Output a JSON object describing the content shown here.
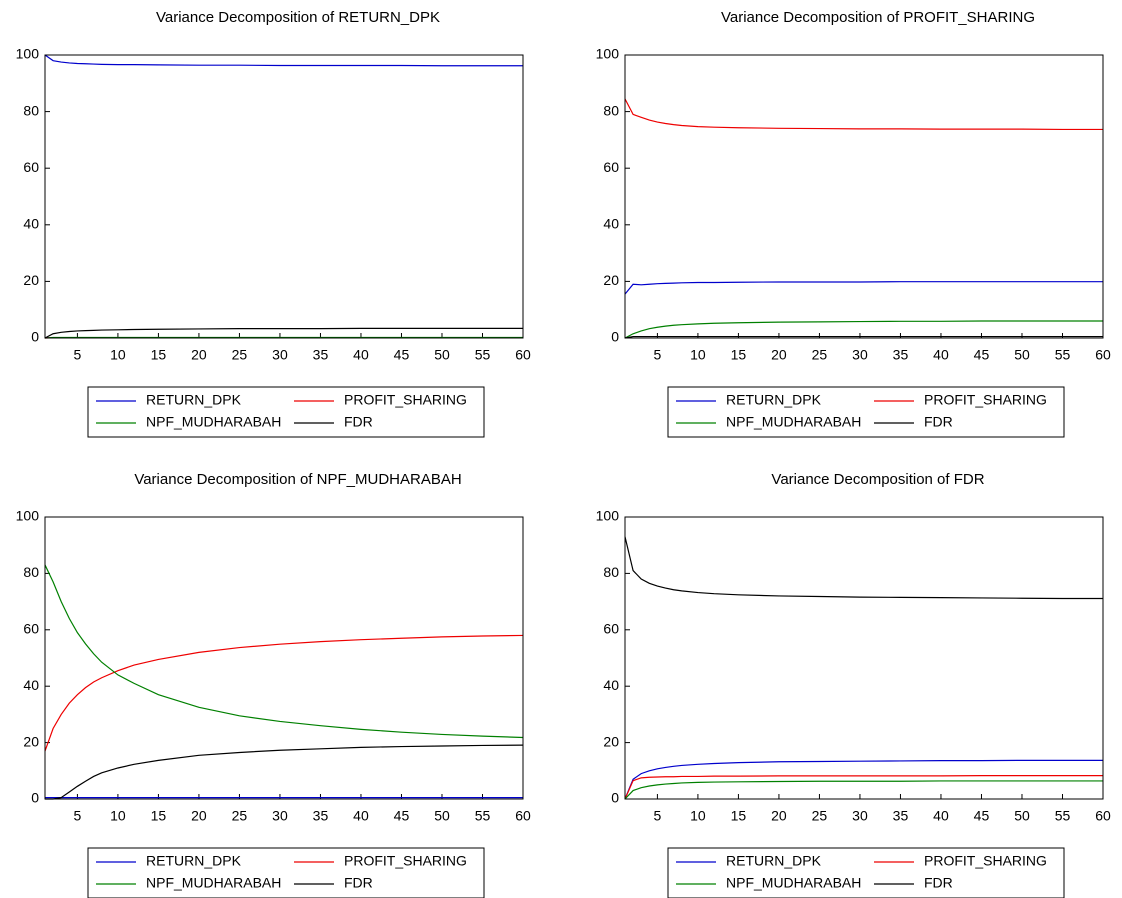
{
  "chart_data": [
    {
      "type": "line",
      "title": "Variance Decomposition of RETURN_DPK",
      "x": [
        1,
        2,
        3,
        4,
        5,
        6,
        7,
        8,
        10,
        12,
        15,
        20,
        25,
        30,
        35,
        40,
        45,
        50,
        55,
        60
      ],
      "xlim": [
        1,
        60
      ],
      "xticks": [
        5,
        10,
        15,
        20,
        25,
        30,
        35,
        40,
        45,
        50,
        55,
        60
      ],
      "ylim": [
        0,
        100
      ],
      "yticks": [
        0,
        20,
        40,
        60,
        80,
        100
      ],
      "series": [
        {
          "name": "RETURN_DPK",
          "color": "#0000cc",
          "values": [
            100,
            98,
            97.5,
            97.2,
            97,
            96.9,
            96.8,
            96.7,
            96.6,
            96.6,
            96.5,
            96.4,
            96.4,
            96.3,
            96.3,
            96.3,
            96.3,
            96.2,
            96.2,
            96.2
          ]
        },
        {
          "name": "PROFIT_SHARING",
          "color": "#ee0000",
          "values": [
            0,
            0.1,
            0.1,
            0.1,
            0.1,
            0.1,
            0.1,
            0.1,
            0.1,
            0.1,
            0.1,
            0.1,
            0.1,
            0.1,
            0.1,
            0.1,
            0.1,
            0.1,
            0.1,
            0.1
          ]
        },
        {
          "name": "NPF_MUDHARABAH",
          "color": "#008000",
          "values": [
            0,
            0.2,
            0.2,
            0.2,
            0.2,
            0.2,
            0.2,
            0.2,
            0.2,
            0.2,
            0.2,
            0.2,
            0.2,
            0.2,
            0.2,
            0.2,
            0.2,
            0.2,
            0.2,
            0.2
          ]
        },
        {
          "name": "FDR",
          "color": "#000000",
          "values": [
            0,
            1.5,
            2,
            2.3,
            2.5,
            2.6,
            2.7,
            2.8,
            2.9,
            3,
            3.1,
            3.2,
            3.3,
            3.3,
            3.3,
            3.4,
            3.4,
            3.4,
            3.4,
            3.4
          ]
        }
      ]
    },
    {
      "type": "line",
      "title": "Variance Decomposition of PROFIT_SHARING",
      "x": [
        1,
        2,
        3,
        4,
        5,
        6,
        7,
        8,
        10,
        12,
        15,
        20,
        25,
        30,
        35,
        40,
        45,
        50,
        55,
        60
      ],
      "xlim": [
        1,
        60
      ],
      "xticks": [
        5,
        10,
        15,
        20,
        25,
        30,
        35,
        40,
        45,
        50,
        55,
        60
      ],
      "ylim": [
        0,
        100
      ],
      "yticks": [
        0,
        20,
        40,
        60,
        80,
        100
      ],
      "series": [
        {
          "name": "RETURN_DPK",
          "color": "#0000cc",
          "values": [
            15.5,
            19,
            18.8,
            19,
            19.2,
            19.3,
            19.4,
            19.5,
            19.6,
            19.6,
            19.7,
            19.8,
            19.8,
            19.8,
            19.9,
            19.9,
            19.9,
            19.9,
            19.9,
            19.9
          ]
        },
        {
          "name": "PROFIT_SHARING",
          "color": "#ee0000",
          "values": [
            84.5,
            79,
            78,
            77,
            76.3,
            75.8,
            75.4,
            75.1,
            74.7,
            74.5,
            74.3,
            74.1,
            74,
            73.9,
            73.9,
            73.8,
            73.8,
            73.8,
            73.7,
            73.7
          ]
        },
        {
          "name": "NPF_MUDHARABAH",
          "color": "#008000",
          "values": [
            0,
            1.5,
            2.5,
            3.3,
            3.8,
            4.2,
            4.5,
            4.7,
            5,
            5.2,
            5.4,
            5.6,
            5.7,
            5.8,
            5.9,
            5.9,
            6,
            6,
            6,
            6
          ]
        },
        {
          "name": "FDR",
          "color": "#000000",
          "values": [
            0,
            0.5,
            0.5,
            0.5,
            0.5,
            0.5,
            0.5,
            0.5,
            0.5,
            0.5,
            0.5,
            0.5,
            0.5,
            0.5,
            0.5,
            0.5,
            0.5,
            0.5,
            0.5,
            0.5
          ]
        }
      ]
    },
    {
      "type": "line",
      "title": "Variance Decomposition of NPF_MUDHARABAH",
      "x": [
        1,
        2,
        3,
        4,
        5,
        6,
        7,
        8,
        10,
        12,
        15,
        20,
        25,
        30,
        35,
        40,
        45,
        50,
        55,
        60
      ],
      "xlim": [
        1,
        60
      ],
      "xticks": [
        5,
        10,
        15,
        20,
        25,
        30,
        35,
        40,
        45,
        50,
        55,
        60
      ],
      "ylim": [
        0,
        100
      ],
      "yticks": [
        0,
        20,
        40,
        60,
        80,
        100
      ],
      "series": [
        {
          "name": "RETURN_DPK",
          "color": "#0000cc",
          "values": [
            0.5,
            0.5,
            0.5,
            0.5,
            0.5,
            0.5,
            0.5,
            0.5,
            0.5,
            0.5,
            0.5,
            0.5,
            0.5,
            0.5,
            0.5,
            0.5,
            0.5,
            0.5,
            0.5,
            0.5
          ]
        },
        {
          "name": "PROFIT_SHARING",
          "color": "#ee0000",
          "values": [
            17,
            25,
            30,
            34,
            37,
            39.5,
            41.5,
            43,
            45.5,
            47.5,
            49.5,
            52,
            53.7,
            54.9,
            55.8,
            56.5,
            57,
            57.5,
            57.8,
            58
          ]
        },
        {
          "name": "NPF_MUDHARABAH",
          "color": "#008000",
          "values": [
            83,
            77,
            70,
            64,
            59,
            55,
            51.5,
            48.5,
            44,
            41,
            37,
            32.5,
            29.5,
            27.5,
            26,
            24.7,
            23.7,
            22.9,
            22.3,
            21.8
          ]
        },
        {
          "name": "FDR",
          "color": "#000000",
          "values": [
            0,
            0,
            0.5,
            2.5,
            4.5,
            6.3,
            8,
            9.3,
            11,
            12.3,
            13.7,
            15.5,
            16.5,
            17.3,
            17.8,
            18.3,
            18.6,
            18.8,
            19,
            19.1
          ]
        }
      ]
    },
    {
      "type": "line",
      "title": "Variance Decomposition of FDR",
      "x": [
        1,
        2,
        3,
        4,
        5,
        6,
        7,
        8,
        10,
        12,
        15,
        20,
        25,
        30,
        35,
        40,
        45,
        50,
        55,
        60
      ],
      "xlim": [
        1,
        60
      ],
      "xticks": [
        5,
        10,
        15,
        20,
        25,
        30,
        35,
        40,
        45,
        50,
        55,
        60
      ],
      "ylim": [
        0,
        100
      ],
      "yticks": [
        0,
        20,
        40,
        60,
        80,
        100
      ],
      "series": [
        {
          "name": "RETURN_DPK",
          "color": "#0000cc",
          "values": [
            0,
            7,
            9,
            10,
            10.7,
            11.2,
            11.6,
            11.9,
            12.3,
            12.6,
            12.9,
            13.2,
            13.3,
            13.4,
            13.5,
            13.6,
            13.6,
            13.7,
            13.7,
            13.7
          ]
        },
        {
          "name": "PROFIT_SHARING",
          "color": "#ee0000",
          "values": [
            0,
            6.5,
            7.5,
            7.7,
            7.8,
            7.9,
            7.9,
            8,
            8,
            8.1,
            8.1,
            8.2,
            8.2,
            8.2,
            8.2,
            8.2,
            8.3,
            8.3,
            8.3,
            8.3
          ]
        },
        {
          "name": "NPF_MUDHARABAH",
          "color": "#008000",
          "values": [
            0,
            3,
            4,
            4.6,
            5,
            5.3,
            5.5,
            5.7,
            5.9,
            6,
            6.1,
            6.2,
            6.3,
            6.3,
            6.3,
            6.4,
            6.4,
            6.4,
            6.4,
            6.4
          ]
        },
        {
          "name": "FDR",
          "color": "#000000",
          "values": [
            93,
            81,
            78,
            76.5,
            75.5,
            74.8,
            74.2,
            73.8,
            73.2,
            72.8,
            72.4,
            72,
            71.8,
            71.6,
            71.5,
            71.4,
            71.3,
            71.2,
            71.1,
            71.1
          ]
        }
      ]
    }
  ]
}
